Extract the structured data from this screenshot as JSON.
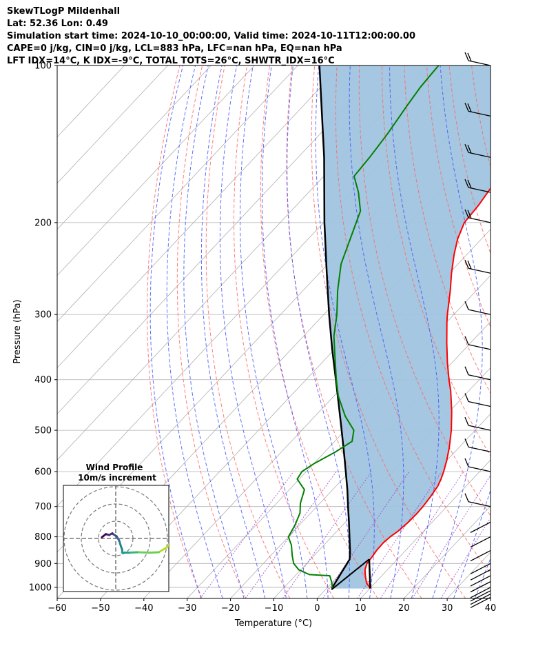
{
  "header": {
    "line1": "SkewTLogP Mildenhall",
    "line2": "Lat: 52.36   Lon: 0.49",
    "line3": "Simulation start time: 2024-10-10_00:00:00, Valid time: 2024-10-11T12:00:00.00",
    "line4": "CAPE=0 j/kg, CIN=0 j/kg, LCL=883 hPa, LFC=nan hPa, EQ=nan hPa",
    "line5": "LFT IDX=14°C, K IDX=-9°C, TOTAL TOTS=26°C, SHWTR_IDX=16°C"
  },
  "chart_data": {
    "type": "line",
    "subtype": "skew-T log-P",
    "xlabel": "Temperature (°C)",
    "ylabel": "Pressure (hPa)",
    "xlim": [
      -60,
      40
    ],
    "ylim": [
      1050,
      100
    ],
    "y_scale": "log",
    "x_ticks": [
      -60,
      -50,
      -40,
      -30,
      -20,
      -10,
      0,
      10,
      20,
      30,
      40
    ],
    "x_tick_labels": [
      "−60",
      "−50",
      "−40",
      "−30",
      "−20",
      "−10",
      "0",
      "10",
      "20",
      "30",
      "40"
    ],
    "y_ticks": [
      1000,
      900,
      800,
      700,
      600,
      500,
      400,
      300,
      200,
      100
    ],
    "grid": true,
    "colors": {
      "temperature": "#ff0000",
      "dewpoint": "#008000",
      "parcel": "#000000",
      "cape_fill": "#a0c4df",
      "dry_adiabats": "#ff6666",
      "moist_adiabats": "#4455ff",
      "mixing_ratio": "#9944cc",
      "isotherms": "#b0b0b0"
    },
    "series": [
      {
        "role": "temperature",
        "p": [
          1005,
          980,
          950,
          925,
          900,
          870,
          850,
          820,
          800,
          780,
          750,
          720,
          700,
          670,
          640,
          620,
          600,
          570,
          540,
          500,
          460,
          420,
          400,
          370,
          340,
          310,
          300,
          270,
          250,
          230,
          215,
          200,
          185,
          170,
          160,
          150,
          140,
          130,
          120,
          110,
          100
        ],
        "t": [
          10.1,
          8.0,
          6.2,
          4.8,
          3.9,
          3.6,
          3.3,
          3.2,
          3.5,
          4.1,
          4.5,
          4.6,
          4.5,
          4.1,
          3.5,
          2.7,
          1.7,
          -0.1,
          -2.2,
          -5.5,
          -9.5,
          -14.2,
          -17.0,
          -21.2,
          -25.5,
          -30.0,
          -31.5,
          -36.0,
          -39.5,
          -43.0,
          -45.5,
          -47.5,
          -48.0,
          -49.0,
          -49.0,
          -49.0,
          -50.0,
          -51.0,
          -51.0,
          -51.0,
          -52.0
        ]
      },
      {
        "role": "dewpoint",
        "p": [
          1005,
          980,
          950,
          945,
          925,
          900,
          870,
          830,
          800,
          760,
          720,
          690,
          650,
          620,
          600,
          580,
          550,
          525,
          500,
          470,
          430,
          400,
          360,
          330,
          300,
          270,
          240,
          210,
          190,
          175,
          163,
          150,
          135,
          120,
          110,
          100
        ],
        "t": [
          1.4,
          0.0,
          -2.0,
          -7.0,
          -10.5,
          -13.0,
          -15.0,
          -17.5,
          -20.0,
          -21.0,
          -22.5,
          -24.5,
          -26.5,
          -30.5,
          -31.0,
          -30.0,
          -27.5,
          -26.0,
          -28.0,
          -33.0,
          -39.0,
          -43.0,
          -48.5,
          -53.0,
          -57.0,
          -62.0,
          -67.0,
          -71.0,
          -74.0,
          -78.5,
          -83.0,
          -83.5,
          -84.5,
          -86.0,
          -87.0,
          -87.5
        ]
      },
      {
        "role": "parcel",
        "p": [
          1005,
          883,
          850,
          800,
          750,
          700,
          650,
          600,
          550,
          500,
          450,
          400,
          350,
          300,
          250,
          200,
          150,
          100
        ],
        "t": [
          1.2,
          -1.0,
          -2.8,
          -5.9,
          -9.2,
          -12.8,
          -16.6,
          -20.9,
          -25.6,
          -30.8,
          -36.6,
          -43.1,
          -50.5,
          -58.8,
          -68.3,
          -79.8,
          -94.0,
          -115.0
        ]
      }
    ],
    "fill_between": "temperature and parcel profiles",
    "wind_barbs_column": "right edge, 100–1000 hPa",
    "inset": {
      "title": "Wind Profile",
      "subtitle": "10m/s increment",
      "type": "hodograph",
      "ring_spacing_ms": 10,
      "u": [
        14,
        13.5,
        13,
        12,
        10,
        8,
        5,
        3,
        1.5,
        1.5,
        1.2,
        0.8,
        0.2,
        -0.6,
        -0.8,
        -1.5,
        -2.3,
        -3.2
      ],
      "v": [
        1.5,
        0.6,
        -0.6,
        -2.0,
        -3.2,
        -3.3,
        -3.2,
        -3.3,
        -3.3,
        -2.6,
        -1.8,
        -0.5,
        0.5,
        1.0,
        1.2,
        0.8,
        1.0,
        0.3
      ],
      "colormap": "viridis"
    }
  }
}
